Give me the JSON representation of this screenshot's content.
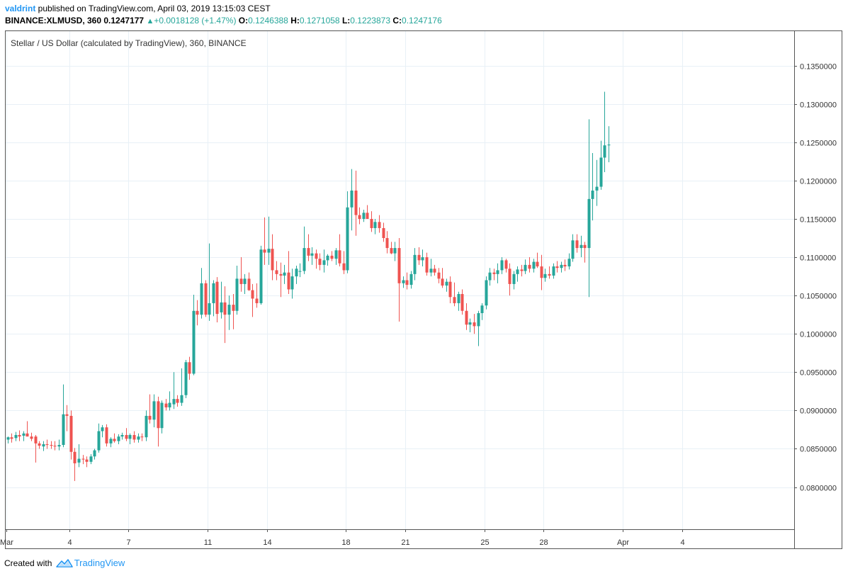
{
  "publish": {
    "user": "valdrint",
    "text": " published on TradingView.com, April 03, 2019 13:15:03 CEST"
  },
  "symbol_bar": {
    "symbol": "BINANCE:XLMUSD, 360",
    "last": "0.1247177",
    "change": "+0.0018128 (+1.47%)",
    "o_label": "O:",
    "o": "0.1246388",
    "h_label": "H:",
    "h": "0.1271058",
    "l_label": "L:",
    "l": "0.1223873",
    "c_label": "C:",
    "c": "0.1247176"
  },
  "footer": {
    "created_with": "Created with",
    "brand": "TradingView"
  },
  "colors": {
    "up": "#26a69a",
    "down": "#ef5350",
    "grid": "#e8f0f6",
    "axis": "#555555"
  },
  "chart_data": {
    "type": "candlestick",
    "title": "Stellar / US Dollar (calculated by TradingView), 360, BINANCE",
    "interval_hours": 6,
    "ylim": [
      0.0745,
      0.1395
    ],
    "y_ticks": [
      0.08,
      0.085,
      0.09,
      0.095,
      0.1,
      0.105,
      0.11,
      0.115,
      0.12,
      0.125,
      0.13,
      0.135
    ],
    "y_tick_labels": [
      "0.0800000",
      "0.0850000",
      "0.0900000",
      "0.0950000",
      "0.1000000",
      "0.1050000",
      "0.1100000",
      "0.1150000",
      "0.1200000",
      "0.1250000",
      "0.1300000",
      "0.1350000"
    ],
    "x_ticks": [
      {
        "label": "Mar",
        "bar": 0
      },
      {
        "label": "4",
        "bar": 16
      },
      {
        "label": "7",
        "bar": 31
      },
      {
        "label": "11",
        "bar": 51
      },
      {
        "label": "14",
        "bar": 66
      },
      {
        "label": "18",
        "bar": 86
      },
      {
        "label": "21",
        "bar": 101
      },
      {
        "label": "25",
        "bar": 121
      },
      {
        "label": "28",
        "bar": 136
      },
      {
        "label": "Apr",
        "bar": 156
      },
      {
        "label": "4",
        "bar": 171
      }
    ],
    "candles": [
      {
        "o": 0.0862,
        "h": 0.0866,
        "l": 0.0857,
        "c": 0.0865
      },
      {
        "o": 0.0865,
        "h": 0.087,
        "l": 0.0858,
        "c": 0.0863
      },
      {
        "o": 0.0864,
        "h": 0.0872,
        "l": 0.086,
        "c": 0.0868
      },
      {
        "o": 0.0868,
        "h": 0.0874,
        "l": 0.086,
        "c": 0.0866
      },
      {
        "o": 0.0867,
        "h": 0.0873,
        "l": 0.086,
        "c": 0.087
      },
      {
        "o": 0.087,
        "h": 0.0886,
        "l": 0.0866,
        "c": 0.0866
      },
      {
        "o": 0.0866,
        "h": 0.0871,
        "l": 0.086,
        "c": 0.0863
      },
      {
        "o": 0.0866,
        "h": 0.0868,
        "l": 0.0832,
        "c": 0.0857
      },
      {
        "o": 0.0857,
        "h": 0.086,
        "l": 0.085,
        "c": 0.0854
      },
      {
        "o": 0.0853,
        "h": 0.086,
        "l": 0.0847,
        "c": 0.0856
      },
      {
        "o": 0.0856,
        "h": 0.0862,
        "l": 0.085,
        "c": 0.0855
      },
      {
        "o": 0.0855,
        "h": 0.086,
        "l": 0.085,
        "c": 0.0854
      },
      {
        "o": 0.0854,
        "h": 0.086,
        "l": 0.0848,
        "c": 0.0853
      },
      {
        "o": 0.0853,
        "h": 0.0862,
        "l": 0.0848,
        "c": 0.0855
      },
      {
        "o": 0.0855,
        "h": 0.0934,
        "l": 0.0852,
        "c": 0.0895
      },
      {
        "o": 0.0895,
        "h": 0.0907,
        "l": 0.0873,
        "c": 0.0893
      },
      {
        "o": 0.0893,
        "h": 0.09,
        "l": 0.0836,
        "c": 0.0846
      },
      {
        "o": 0.0846,
        "h": 0.0851,
        "l": 0.0808,
        "c": 0.0831
      },
      {
        "o": 0.0832,
        "h": 0.0856,
        "l": 0.0826,
        "c": 0.0837
      },
      {
        "o": 0.0837,
        "h": 0.0842,
        "l": 0.083,
        "c": 0.0836
      },
      {
        "o": 0.0836,
        "h": 0.084,
        "l": 0.0826,
        "c": 0.0833
      },
      {
        "o": 0.0833,
        "h": 0.0843,
        "l": 0.083,
        "c": 0.084
      },
      {
        "o": 0.084,
        "h": 0.085,
        "l": 0.0836,
        "c": 0.0848
      },
      {
        "o": 0.0848,
        "h": 0.0883,
        "l": 0.0845,
        "c": 0.0873
      },
      {
        "o": 0.0873,
        "h": 0.0881,
        "l": 0.0865,
        "c": 0.0878
      },
      {
        "o": 0.0878,
        "h": 0.0882,
        "l": 0.0853,
        "c": 0.0857
      },
      {
        "o": 0.0857,
        "h": 0.0865,
        "l": 0.0852,
        "c": 0.0863
      },
      {
        "o": 0.0863,
        "h": 0.087,
        "l": 0.0858,
        "c": 0.086
      },
      {
        "o": 0.086,
        "h": 0.0869,
        "l": 0.0856,
        "c": 0.0866
      },
      {
        "o": 0.0866,
        "h": 0.0871,
        "l": 0.0862,
        "c": 0.0868
      },
      {
        "o": 0.0868,
        "h": 0.0877,
        "l": 0.086,
        "c": 0.0863
      },
      {
        "o": 0.0863,
        "h": 0.087,
        "l": 0.0856,
        "c": 0.0868
      },
      {
        "o": 0.0868,
        "h": 0.0873,
        "l": 0.0858,
        "c": 0.0862
      },
      {
        "o": 0.0862,
        "h": 0.087,
        "l": 0.0858,
        "c": 0.0866
      },
      {
        "o": 0.0866,
        "h": 0.087,
        "l": 0.086,
        "c": 0.0865
      },
      {
        "o": 0.0865,
        "h": 0.09,
        "l": 0.086,
        "c": 0.0893
      },
      {
        "o": 0.0893,
        "h": 0.0921,
        "l": 0.0883,
        "c": 0.0888
      },
      {
        "o": 0.0888,
        "h": 0.0921,
        "l": 0.0878,
        "c": 0.0912
      },
      {
        "o": 0.0912,
        "h": 0.0918,
        "l": 0.0853,
        "c": 0.0877
      },
      {
        "o": 0.0877,
        "h": 0.0913,
        "l": 0.087,
        "c": 0.091
      },
      {
        "o": 0.0909,
        "h": 0.0915,
        "l": 0.09,
        "c": 0.0904
      },
      {
        "o": 0.0904,
        "h": 0.0925,
        "l": 0.09,
        "c": 0.091
      },
      {
        "o": 0.0908,
        "h": 0.095,
        "l": 0.0902,
        "c": 0.0915
      },
      {
        "o": 0.0915,
        "h": 0.092,
        "l": 0.0905,
        "c": 0.091
      },
      {
        "o": 0.091,
        "h": 0.0955,
        "l": 0.0906,
        "c": 0.092
      },
      {
        "o": 0.092,
        "h": 0.0966,
        "l": 0.0916,
        "c": 0.0963
      },
      {
        "o": 0.0963,
        "h": 0.097,
        "l": 0.094,
        "c": 0.0948
      },
      {
        "o": 0.0948,
        "h": 0.1051,
        "l": 0.0946,
        "c": 0.103
      },
      {
        "o": 0.103,
        "h": 0.1044,
        "l": 0.1011,
        "c": 0.1025
      },
      {
        "o": 0.1025,
        "h": 0.1086,
        "l": 0.102,
        "c": 0.1066
      },
      {
        "o": 0.1066,
        "h": 0.107,
        "l": 0.1022,
        "c": 0.1025
      },
      {
        "o": 0.1025,
        "h": 0.1118,
        "l": 0.1017,
        "c": 0.104
      },
      {
        "o": 0.104,
        "h": 0.107,
        "l": 0.1023,
        "c": 0.1066
      },
      {
        "o": 0.1068,
        "h": 0.1074,
        "l": 0.1015,
        "c": 0.1026
      },
      {
        "o": 0.1028,
        "h": 0.1068,
        "l": 0.102,
        "c": 0.1041
      },
      {
        "o": 0.1041,
        "h": 0.1062,
        "l": 0.0988,
        "c": 0.1025
      },
      {
        "o": 0.1025,
        "h": 0.105,
        "l": 0.1005,
        "c": 0.1038
      },
      {
        "o": 0.1038,
        "h": 0.1052,
        "l": 0.1006,
        "c": 0.103
      },
      {
        "o": 0.103,
        "h": 0.1089,
        "l": 0.1025,
        "c": 0.1072
      },
      {
        "o": 0.1072,
        "h": 0.11,
        "l": 0.1055,
        "c": 0.1065
      },
      {
        "o": 0.1065,
        "h": 0.1078,
        "l": 0.1052,
        "c": 0.1072
      },
      {
        "o": 0.1072,
        "h": 0.108,
        "l": 0.1056,
        "c": 0.1057
      },
      {
        "o": 0.1057,
        "h": 0.1065,
        "l": 0.1022,
        "c": 0.1046
      },
      {
        "o": 0.1046,
        "h": 0.1066,
        "l": 0.1034,
        "c": 0.104
      },
      {
        "o": 0.104,
        "h": 0.1115,
        "l": 0.1038,
        "c": 0.111
      },
      {
        "o": 0.111,
        "h": 0.1152,
        "l": 0.109,
        "c": 0.1106
      },
      {
        "o": 0.1106,
        "h": 0.1153,
        "l": 0.109,
        "c": 0.1111
      },
      {
        "o": 0.1111,
        "h": 0.113,
        "l": 0.107,
        "c": 0.1083
      },
      {
        "o": 0.1083,
        "h": 0.1095,
        "l": 0.107,
        "c": 0.1078
      },
      {
        "o": 0.1078,
        "h": 0.1093,
        "l": 0.1048,
        "c": 0.1076
      },
      {
        "o": 0.1076,
        "h": 0.109,
        "l": 0.1065,
        "c": 0.108
      },
      {
        "o": 0.108,
        "h": 0.1108,
        "l": 0.1052,
        "c": 0.1058
      },
      {
        "o": 0.1058,
        "h": 0.1085,
        "l": 0.1046,
        "c": 0.1075
      },
      {
        "o": 0.1075,
        "h": 0.1089,
        "l": 0.1065,
        "c": 0.1085
      },
      {
        "o": 0.1081,
        "h": 0.1092,
        "l": 0.1074,
        "c": 0.1082
      },
      {
        "o": 0.1082,
        "h": 0.114,
        "l": 0.1078,
        "c": 0.1112
      },
      {
        "o": 0.1112,
        "h": 0.113,
        "l": 0.1095,
        "c": 0.1102
      },
      {
        "o": 0.1102,
        "h": 0.1113,
        "l": 0.109,
        "c": 0.1105
      },
      {
        "o": 0.1105,
        "h": 0.111,
        "l": 0.1085,
        "c": 0.1098
      },
      {
        "o": 0.1098,
        "h": 0.1105,
        "l": 0.1083,
        "c": 0.109
      },
      {
        "o": 0.109,
        "h": 0.111,
        "l": 0.108,
        "c": 0.1096
      },
      {
        "o": 0.1096,
        "h": 0.1104,
        "l": 0.1089,
        "c": 0.1102
      },
      {
        "o": 0.1102,
        "h": 0.1108,
        "l": 0.1095,
        "c": 0.1098
      },
      {
        "o": 0.1098,
        "h": 0.1112,
        "l": 0.109,
        "c": 0.1109
      },
      {
        "o": 0.1109,
        "h": 0.113,
        "l": 0.1088,
        "c": 0.1092
      },
      {
        "o": 0.1092,
        "h": 0.1108,
        "l": 0.1078,
        "c": 0.1083
      },
      {
        "o": 0.1083,
        "h": 0.1186,
        "l": 0.1079,
        "c": 0.1165
      },
      {
        "o": 0.1165,
        "h": 0.1215,
        "l": 0.1135,
        "c": 0.1187
      },
      {
        "o": 0.1187,
        "h": 0.1213,
        "l": 0.1128,
        "c": 0.1155
      },
      {
        "o": 0.1155,
        "h": 0.1165,
        "l": 0.1143,
        "c": 0.115
      },
      {
        "o": 0.115,
        "h": 0.1162,
        "l": 0.1146,
        "c": 0.1158
      },
      {
        "o": 0.1158,
        "h": 0.1168,
        "l": 0.115,
        "c": 0.115
      },
      {
        "o": 0.115,
        "h": 0.116,
        "l": 0.1133,
        "c": 0.1138
      },
      {
        "o": 0.1138,
        "h": 0.115,
        "l": 0.113,
        "c": 0.1146
      },
      {
        "o": 0.1146,
        "h": 0.1155,
        "l": 0.1132,
        "c": 0.1138
      },
      {
        "o": 0.1138,
        "h": 0.1145,
        "l": 0.112,
        "c": 0.1125
      },
      {
        "o": 0.1125,
        "h": 0.1134,
        "l": 0.1105,
        "c": 0.1112
      },
      {
        "o": 0.1112,
        "h": 0.112,
        "l": 0.1104,
        "c": 0.1105
      },
      {
        "o": 0.1105,
        "h": 0.112,
        "l": 0.1095,
        "c": 0.1112
      },
      {
        "o": 0.1112,
        "h": 0.1125,
        "l": 0.1016,
        "c": 0.1066
      },
      {
        "o": 0.1066,
        "h": 0.1075,
        "l": 0.106,
        "c": 0.107
      },
      {
        "o": 0.107,
        "h": 0.108,
        "l": 0.1058,
        "c": 0.1064
      },
      {
        "o": 0.1064,
        "h": 0.1082,
        "l": 0.1059,
        "c": 0.1078
      },
      {
        "o": 0.1078,
        "h": 0.1112,
        "l": 0.107,
        "c": 0.1103
      },
      {
        "o": 0.1103,
        "h": 0.1113,
        "l": 0.109,
        "c": 0.1096
      },
      {
        "o": 0.1096,
        "h": 0.111,
        "l": 0.1088,
        "c": 0.11
      },
      {
        "o": 0.11,
        "h": 0.1106,
        "l": 0.1076,
        "c": 0.108
      },
      {
        "o": 0.108,
        "h": 0.1098,
        "l": 0.1075,
        "c": 0.1085
      },
      {
        "o": 0.1085,
        "h": 0.109,
        "l": 0.1076,
        "c": 0.108
      },
      {
        "o": 0.108,
        "h": 0.1086,
        "l": 0.1066,
        "c": 0.1072
      },
      {
        "o": 0.1072,
        "h": 0.1086,
        "l": 0.106,
        "c": 0.1063
      },
      {
        "o": 0.1063,
        "h": 0.1072,
        "l": 0.1055,
        "c": 0.1068
      },
      {
        "o": 0.1068,
        "h": 0.1075,
        "l": 0.104,
        "c": 0.1048
      },
      {
        "o": 0.1048,
        "h": 0.1067,
        "l": 0.1036,
        "c": 0.104
      },
      {
        "o": 0.104,
        "h": 0.1055,
        "l": 0.103,
        "c": 0.1052
      },
      {
        "o": 0.1052,
        "h": 0.1058,
        "l": 0.1025,
        "c": 0.103
      },
      {
        "o": 0.103,
        "h": 0.104,
        "l": 0.1005,
        "c": 0.1012
      },
      {
        "o": 0.1012,
        "h": 0.102,
        "l": 0.1002,
        "c": 0.1015
      },
      {
        "o": 0.1015,
        "h": 0.1026,
        "l": 0.1,
        "c": 0.101
      },
      {
        "o": 0.101,
        "h": 0.103,
        "l": 0.0984,
        "c": 0.1027
      },
      {
        "o": 0.1027,
        "h": 0.104,
        "l": 0.1018,
        "c": 0.1037
      },
      {
        "o": 0.1037,
        "h": 0.1075,
        "l": 0.1032,
        "c": 0.107
      },
      {
        "o": 0.107,
        "h": 0.1086,
        "l": 0.1063,
        "c": 0.108
      },
      {
        "o": 0.108,
        "h": 0.1085,
        "l": 0.107,
        "c": 0.1078
      },
      {
        "o": 0.1078,
        "h": 0.1092,
        "l": 0.1066,
        "c": 0.1083
      },
      {
        "o": 0.1083,
        "h": 0.11,
        "l": 0.1078,
        "c": 0.1096
      },
      {
        "o": 0.1096,
        "h": 0.1098,
        "l": 0.108,
        "c": 0.1085
      },
      {
        "o": 0.1085,
        "h": 0.1092,
        "l": 0.105,
        "c": 0.1065
      },
      {
        "o": 0.1065,
        "h": 0.1082,
        "l": 0.1058,
        "c": 0.1078
      },
      {
        "o": 0.1078,
        "h": 0.1088,
        "l": 0.1068,
        "c": 0.1084
      },
      {
        "o": 0.1084,
        "h": 0.109,
        "l": 0.1075,
        "c": 0.1082
      },
      {
        "o": 0.1082,
        "h": 0.1097,
        "l": 0.1078,
        "c": 0.109
      },
      {
        "o": 0.109,
        "h": 0.11,
        "l": 0.108,
        "c": 0.1085
      },
      {
        "o": 0.1085,
        "h": 0.1098,
        "l": 0.108,
        "c": 0.1094
      },
      {
        "o": 0.1094,
        "h": 0.1106,
        "l": 0.1086,
        "c": 0.1088
      },
      {
        "o": 0.1088,
        "h": 0.1103,
        "l": 0.1057,
        "c": 0.1073
      },
      {
        "o": 0.1073,
        "h": 0.1085,
        "l": 0.1068,
        "c": 0.1078
      },
      {
        "o": 0.1078,
        "h": 0.1088,
        "l": 0.1072,
        "c": 0.1076
      },
      {
        "o": 0.1076,
        "h": 0.1092,
        "l": 0.1072,
        "c": 0.1088
      },
      {
        "o": 0.1088,
        "h": 0.1095,
        "l": 0.108,
        "c": 0.1086
      },
      {
        "o": 0.1086,
        "h": 0.1094,
        "l": 0.108,
        "c": 0.109
      },
      {
        "o": 0.109,
        "h": 0.1097,
        "l": 0.1082,
        "c": 0.1088
      },
      {
        "o": 0.1088,
        "h": 0.1105,
        "l": 0.1084,
        "c": 0.1098
      },
      {
        "o": 0.1098,
        "h": 0.113,
        "l": 0.1094,
        "c": 0.1122
      },
      {
        "o": 0.1122,
        "h": 0.113,
        "l": 0.1106,
        "c": 0.1112
      },
      {
        "o": 0.1112,
        "h": 0.1128,
        "l": 0.11,
        "c": 0.1116
      },
      {
        "o": 0.1116,
        "h": 0.112,
        "l": 0.1093,
        "c": 0.1112
      },
      {
        "o": 0.1112,
        "h": 0.128,
        "l": 0.1048,
        "c": 0.1176
      },
      {
        "o": 0.1176,
        "h": 0.1236,
        "l": 0.1148,
        "c": 0.1187
      },
      {
        "o": 0.1187,
        "h": 0.1227,
        "l": 0.1167,
        "c": 0.1192
      },
      {
        "o": 0.1192,
        "h": 0.1252,
        "l": 0.1188,
        "c": 0.123
      },
      {
        "o": 0.123,
        "h": 0.1316,
        "l": 0.1211,
        "c": 0.1246
      },
      {
        "o": 0.1246,
        "h": 0.1271,
        "l": 0.1224,
        "c": 0.1247
      }
    ]
  }
}
